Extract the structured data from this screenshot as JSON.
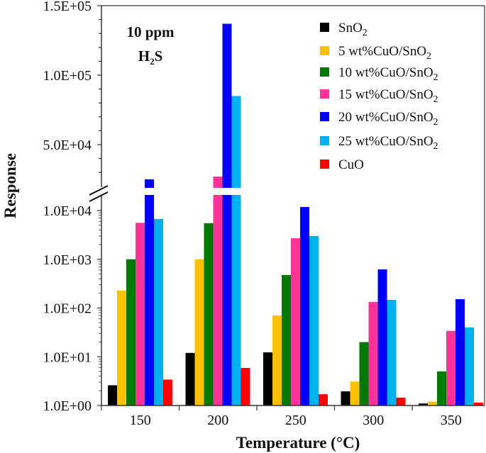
{
  "chart_data": {
    "type": "bar",
    "title": "",
    "annotation": {
      "line1": "10 ppm",
      "line2_main": "H",
      "line2_sub": "2",
      "line2_end": "S"
    },
    "xlabel": "Temperature (°C)",
    "ylabel": "Response",
    "yscale": "broken: log 1E+00–1E+04 (lower), linear ~2E+04–1.5E+05 (upper)",
    "ylim": [
      1,
      150000
    ],
    "yticks_lower": [
      "1.0E+00",
      "1.0E+01",
      "1.0E+02",
      "1.0E+03",
      "1.0E+04"
    ],
    "yticks_upper": [
      "5.0E+04",
      "1.0E+05",
      "1.5E+05"
    ],
    "categories": [
      "150",
      "200",
      "250",
      "300",
      "350"
    ],
    "legend_position": "top-right",
    "series": [
      {
        "name": "SnO",
        "sub": "2",
        "color": "#000000",
        "values": [
          2.6,
          12,
          12.3,
          1.95,
          1.1
        ]
      },
      {
        "name": "5 wt%CuO/SnO",
        "sub": "2",
        "color": "#FFC000",
        "values": [
          228,
          1000,
          70,
          3.1,
          1.2
        ]
      },
      {
        "name": "10 wt%CuO/SnO",
        "sub": "2",
        "color": "#007A00",
        "values": [
          1000,
          5500,
          475,
          20,
          5.0
        ]
      },
      {
        "name": "15 wt%CuO/SnO",
        "sub": "2",
        "color": "#FF3399",
        "values": [
          5600,
          27000,
          2700,
          133,
          34
        ]
      },
      {
        "name": "20 wt%CuO/SnO",
        "sub": "2",
        "color": "#0000FF",
        "values": [
          25000,
          137000,
          11800,
          620,
          152
        ]
      },
      {
        "name": "25 wt%CuO/SnO",
        "sub": "2",
        "color": "#00B0F0",
        "values": [
          6700,
          85000,
          3000,
          147,
          40
        ]
      },
      {
        "name": "CuO",
        "sub": "",
        "color": "#FF0000",
        "values": [
          3.4,
          5.9,
          1.7,
          1.45,
          1.15
        ]
      }
    ]
  }
}
